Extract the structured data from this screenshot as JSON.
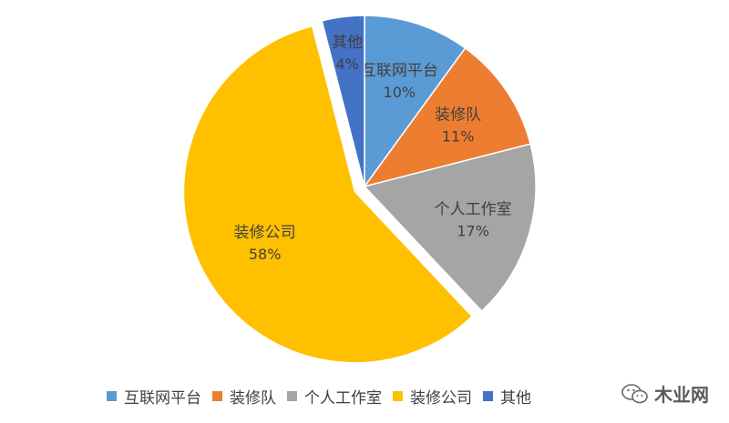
{
  "chart_data": {
    "type": "pie",
    "title": "",
    "slices": [
      {
        "label": "互联网平台",
        "value": 10,
        "value_label": "10%",
        "color": "#5B9BD5"
      },
      {
        "label": "装修队",
        "value": 11,
        "value_label": "11%",
        "color": "#ED7D31"
      },
      {
        "label": "个人工作室",
        "value": 17,
        "value_label": "17%",
        "color": "#A5A5A5"
      },
      {
        "label": "装修公司",
        "value": 58,
        "value_label": "58%",
        "color": "#FFC000"
      },
      {
        "label": "其他",
        "value": 4,
        "value_label": "4%",
        "color": "#4472C4"
      }
    ],
    "exploded": [
      "装修公司"
    ],
    "legend_position": "bottom"
  },
  "watermark": {
    "text": "木业网",
    "icon": "wechat-icon"
  }
}
